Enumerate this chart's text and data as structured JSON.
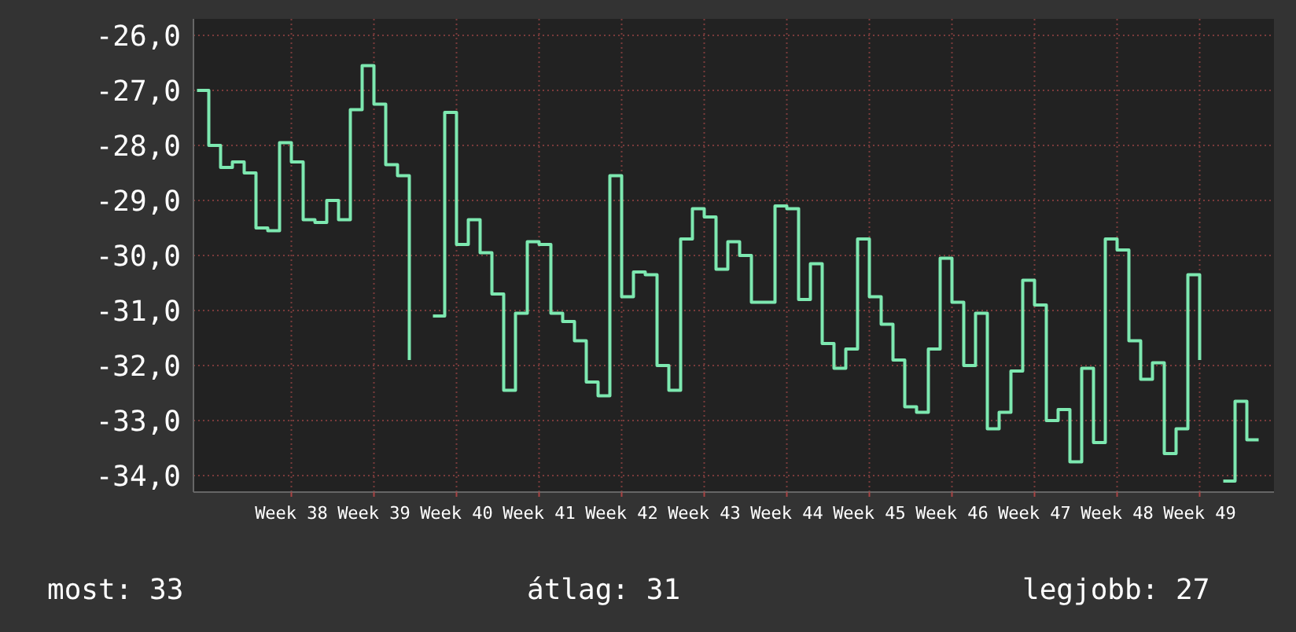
{
  "chart_data": {
    "type": "step",
    "ylim": [
      -34.3,
      -25.7
    ],
    "categories": [
      null,
      null,
      null,
      null,
      null,
      null,
      null,
      null,
      "Week 38",
      null,
      null,
      null,
      null,
      null,
      null,
      "Week 39",
      null,
      null,
      null,
      null,
      null,
      null,
      "Week 40",
      null,
      null,
      null,
      null,
      null,
      null,
      "Week 41",
      null,
      null,
      null,
      null,
      null,
      null,
      "Week 42",
      null,
      null,
      null,
      null,
      null,
      null,
      "Week 43",
      null,
      null,
      null,
      null,
      null,
      null,
      "Week 44",
      null,
      null,
      null,
      null,
      null,
      null,
      "Week 45",
      null,
      null,
      null,
      null,
      null,
      null,
      "Week 46",
      null,
      null,
      null,
      null,
      null,
      null,
      "Week 47",
      null,
      null,
      null,
      null,
      null,
      null,
      "Week 48",
      null,
      null,
      null,
      null,
      null,
      null,
      "Week 49",
      null,
      null,
      null,
      null,
      null
    ],
    "yticks": [
      {
        "value": -26,
        "label": "-26,0"
      },
      {
        "value": -27,
        "label": "-27,0"
      },
      {
        "value": -28,
        "label": "-28,0"
      },
      {
        "value": -29,
        "label": "-29,0"
      },
      {
        "value": -30,
        "label": "-30,0"
      },
      {
        "value": -31,
        "label": "-31,0"
      },
      {
        "value": -32,
        "label": "-32,0"
      },
      {
        "value": -33,
        "label": "-33,0"
      },
      {
        "value": -34,
        "label": "-34,0"
      }
    ],
    "grid": true,
    "series": [
      {
        "color": "#7de8b0",
        "line_style": "solid",
        "marker": "none",
        "values": [
          -27.0,
          -28.0,
          -28.4,
          -28.3,
          -28.5,
          -29.5,
          -29.55,
          -27.95,
          -28.3,
          -29.35,
          -29.4,
          -29.0,
          -29.35,
          -27.35,
          -26.55,
          -27.25,
          -28.35,
          -28.55,
          -31.9,
          null,
          -31.1,
          -27.4,
          -29.8,
          -29.35,
          -29.95,
          -30.7,
          -32.45,
          -31.05,
          -29.75,
          -29.8,
          -31.05,
          -31.2,
          -31.55,
          -32.3,
          -32.55,
          -28.55,
          -30.75,
          -30.3,
          -30.35,
          -32.0,
          -32.45,
          -29.7,
          -29.15,
          -29.3,
          -30.25,
          -29.75,
          -30.0,
          -30.85,
          -30.85,
          -29.1,
          -29.15,
          -30.8,
          -30.15,
          -31.6,
          -32.05,
          -31.7,
          -29.7,
          -30.75,
          -31.25,
          -31.9,
          -32.75,
          -32.85,
          -31.7,
          -30.05,
          -30.85,
          -32.0,
          -31.05,
          -33.15,
          -32.85,
          -32.1,
          -30.45,
          -30.9,
          -33.0,
          -32.8,
          -33.75,
          -32.05,
          -33.4,
          -29.7,
          -29.9,
          -31.55,
          -32.25,
          -31.95,
          -33.6,
          -33.15,
          -30.35,
          -31.9,
          null,
          -34.1,
          -32.65,
          -33.35,
          -33.35
        ]
      }
    ],
    "annotations": [
      "most: 33",
      "átlag: 31",
      "legjobb: 27"
    ]
  }
}
